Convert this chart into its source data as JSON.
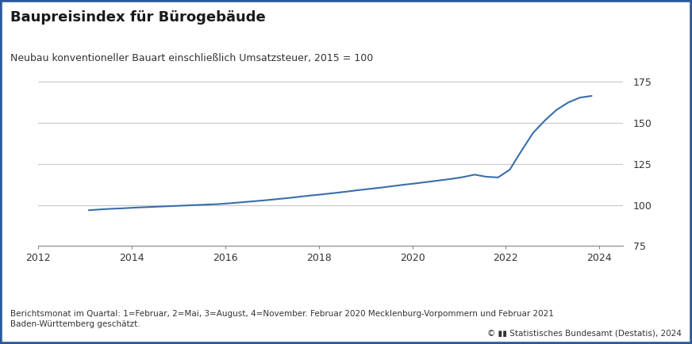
{
  "title": "Baupreisindex für Bürogebäude",
  "subtitle": "Neubau konventioneller Bauart einschließlich Umsatzsteuer, 2015 = 100",
  "footer_left": "Berichtsmonat im Quartal: 1=Februar, 2=Mai, 3=August, 4=November. Februar 2020 Mecklenburg-Vorpommern und Februar 2021\nBaden-Württemberg geschätzt.",
  "footer_right": "© ▮▮ Statistisches Bundesamt (Destatis), 2024",
  "line_color": "#3A6EAA",
  "background_color": "#FFFFFF",
  "border_color": "#2B5899",
  "border_linewidth": 4,
  "xlim": [
    2012.0,
    2024.5
  ],
  "ylim": [
    75,
    182
  ],
  "yticks": [
    75,
    100,
    125,
    150,
    175
  ],
  "xticks": [
    2012,
    2014,
    2016,
    2018,
    2020,
    2022,
    2024
  ],
  "grid_color": "#C8C8C8",
  "x": [
    2013.083,
    2013.333,
    2013.583,
    2013.833,
    2014.083,
    2014.333,
    2014.583,
    2014.833,
    2015.083,
    2015.333,
    2015.583,
    2015.833,
    2016.083,
    2016.333,
    2016.583,
    2016.833,
    2017.083,
    2017.333,
    2017.583,
    2017.833,
    2018.083,
    2018.333,
    2018.583,
    2018.833,
    2019.083,
    2019.333,
    2019.583,
    2019.833,
    2020.083,
    2020.333,
    2020.583,
    2020.833,
    2021.083,
    2021.333,
    2021.583,
    2021.833,
    2022.083,
    2022.333,
    2022.583,
    2022.833,
    2023.083,
    2023.333,
    2023.583,
    2023.833
  ],
  "y": [
    96.8,
    97.3,
    97.7,
    98.0,
    98.4,
    98.7,
    99.0,
    99.3,
    99.6,
    99.9,
    100.2,
    100.5,
    101.0,
    101.6,
    102.2,
    102.8,
    103.5,
    104.2,
    105.0,
    105.8,
    106.5,
    107.3,
    108.1,
    109.0,
    109.8,
    110.6,
    111.5,
    112.4,
    113.2,
    114.1,
    115.0,
    115.9,
    117.0,
    118.5,
    117.2,
    116.8,
    121.5,
    133.0,
    144.0,
    151.5,
    158.0,
    162.5,
    165.5,
    166.5
  ],
  "title_fontsize": 13,
  "subtitle_fontsize": 9,
  "tick_fontsize": 9,
  "footer_fontsize": 7.5
}
